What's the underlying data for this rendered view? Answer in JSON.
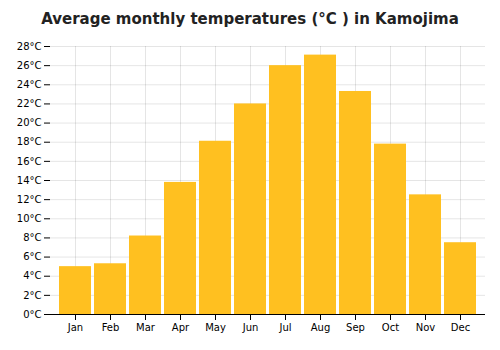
{
  "chart_data": {
    "type": "bar",
    "title": "Average monthly temperatures (°C ) in Kamojima",
    "categories": [
      "Jan",
      "Feb",
      "Mar",
      "Apr",
      "May",
      "Jun",
      "Jul",
      "Aug",
      "Sep",
      "Oct",
      "Nov",
      "Dec"
    ],
    "values": [
      5.0,
      5.3,
      8.2,
      13.8,
      18.1,
      22.0,
      26.0,
      27.1,
      23.3,
      17.8,
      12.5,
      7.5
    ],
    "color": "#FFC020",
    "ylim": [
      0,
      28
    ],
    "yticks": [
      {
        "value": 0,
        "label": "0°C"
      },
      {
        "value": 2,
        "label": "2°C"
      },
      {
        "value": 4,
        "label": "4°C"
      },
      {
        "value": 6,
        "label": "6°C"
      },
      {
        "value": 8,
        "label": "8°C"
      },
      {
        "value": 10,
        "label": "10°C"
      },
      {
        "value": 12,
        "label": "12°C"
      },
      {
        "value": 14,
        "label": "14°C"
      },
      {
        "value": 16,
        "label": "16°C"
      },
      {
        "value": 18,
        "label": "18°C"
      },
      {
        "value": 20,
        "label": "20°C"
      },
      {
        "value": 22,
        "label": "22°C"
      },
      {
        "value": 24,
        "label": "24°C"
      },
      {
        "value": 26,
        "label": "26°C"
      },
      {
        "value": 28,
        "label": "28°C"
      }
    ],
    "grid": true
  }
}
